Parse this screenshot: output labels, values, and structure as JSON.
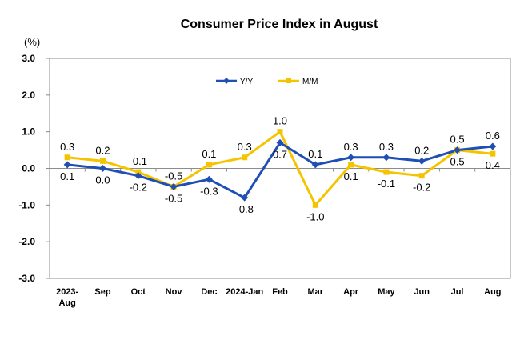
{
  "chart_data": {
    "type": "line",
    "title": "Consumer Price Index in August",
    "ylabel": "(%)",
    "ylim": [
      -3.0,
      3.0
    ],
    "yticks": [
      "3.0",
      "2.0",
      "1.0",
      "0.0",
      "-1.0",
      "-2.0",
      "-3.0"
    ],
    "grid": false,
    "legend_position": "top-center",
    "categories": [
      [
        "2023-",
        "Aug"
      ],
      [
        "Sep"
      ],
      [
        "Oct"
      ],
      [
        "Nov"
      ],
      [
        "Dec"
      ],
      [
        "2024-Jan"
      ],
      [
        "Feb"
      ],
      [
        "Mar"
      ],
      [
        "Apr"
      ],
      [
        "May"
      ],
      [
        "Jun"
      ],
      [
        "Jul"
      ],
      [
        "Aug"
      ]
    ],
    "series": [
      {
        "name": "Y/Y",
        "color": "#1F4FB4",
        "marker": "diamond",
        "values": [
          0.1,
          0.0,
          -0.2,
          -0.5,
          -0.3,
          -0.8,
          0.7,
          0.1,
          0.3,
          0.3,
          0.2,
          0.5,
          0.6
        ],
        "labels": [
          "0.1",
          "0.0",
          "-0.2",
          "-0.5",
          "-0.3",
          "-0.8",
          "0.7",
          "0.1",
          "0.3",
          "0.3",
          "0.2",
          "0.5",
          "0.6"
        ],
        "label_pos": [
          "below",
          "below",
          "below",
          "below",
          "below",
          "below",
          "below",
          "above",
          "above",
          "above",
          "above",
          "above",
          "above"
        ]
      },
      {
        "name": "M/M",
        "color": "#F5C400",
        "marker": "square",
        "values": [
          0.3,
          0.2,
          -0.1,
          -0.5,
          0.1,
          0.3,
          1.0,
          -1.0,
          0.1,
          -0.1,
          -0.2,
          0.5,
          0.4
        ],
        "labels": [
          "0.3",
          "0.2",
          "-0.1",
          "-0.5",
          "0.1",
          "0.3",
          "1.0",
          "-1.0",
          "0.1",
          "-0.1",
          "-0.2",
          "0.5",
          "0.4"
        ],
        "label_pos": [
          "above",
          "above",
          "above",
          "above",
          "above",
          "above",
          "above",
          "below",
          "below",
          "below",
          "below",
          "below",
          "below"
        ]
      }
    ]
  }
}
